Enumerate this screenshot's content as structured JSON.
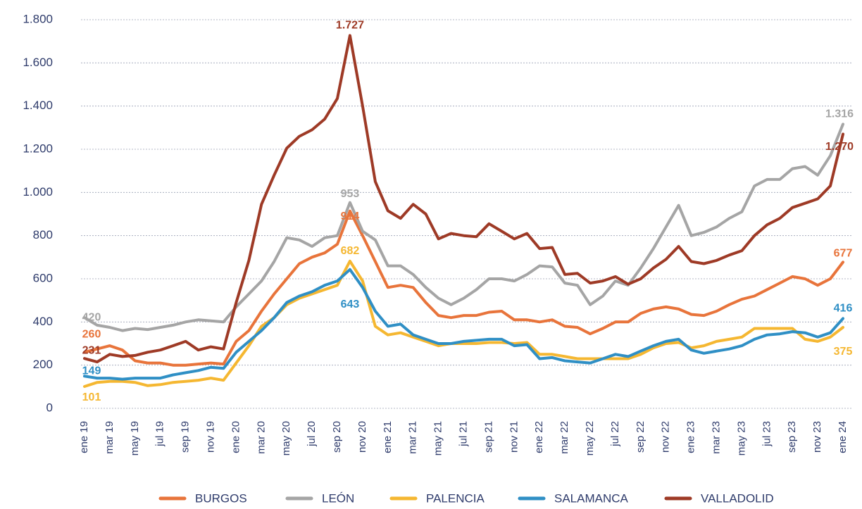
{
  "chart_data": {
    "type": "line",
    "categories": [
      "ene 19",
      null,
      "mar 19",
      null,
      "may 19",
      null,
      "jul 19",
      null,
      "sep 19",
      null,
      "nov 19",
      null,
      "ene 20",
      null,
      "mar 20",
      null,
      "may 20",
      null,
      "jul 20",
      null,
      "sep 20",
      null,
      "nov 20",
      null,
      "ene 21",
      null,
      "mar 21",
      null,
      "may 21",
      null,
      "jul 21",
      null,
      "sep 21",
      null,
      "nov 21",
      null,
      "ene 22",
      null,
      "mar 22",
      null,
      "may 22",
      null,
      "jul 22",
      null,
      "sep 22",
      null,
      "nov 22",
      null,
      "ene 23",
      null,
      "mar 23",
      null,
      "may 23",
      null,
      "jul 23",
      null,
      "sep 23",
      null,
      "nov 23",
      null,
      "ene 24"
    ],
    "ylim": [
      0,
      1800
    ],
    "yticks": [
      0,
      200,
      400,
      600,
      800,
      {
        "value": 1000,
        "label": "1.000"
      },
      {
        "value": 1200,
        "label": "1.200"
      },
      {
        "value": 1400,
        "label": "1.400"
      },
      {
        "value": 1600,
        "label": "1.600"
      },
      {
        "value": 1800,
        "label": "1.800"
      }
    ],
    "grid": true,
    "legend": "bottom",
    "series": [
      {
        "name": "BURGOS",
        "color": "#e8743b",
        "values": [
          260,
          275,
          290,
          270,
          220,
          210,
          210,
          200,
          200,
          205,
          210,
          205,
          310,
          360,
          450,
          530,
          600,
          670,
          700,
          720,
          760,
          914,
          800,
          680,
          560,
          570,
          560,
          490,
          430,
          420,
          430,
          430,
          445,
          450,
          410,
          410,
          400,
          410,
          380,
          375,
          345,
          370,
          400,
          400,
          440,
          460,
          470,
          460,
          435,
          430,
          450,
          480,
          505,
          520,
          550,
          580,
          610,
          600,
          570,
          600,
          677
        ],
        "value_labels": [
          "260",
          null,
          null,
          null,
          null,
          null,
          null,
          null,
          null,
          null,
          null,
          null,
          null,
          null,
          null,
          null,
          null,
          null,
          null,
          null,
          null,
          "914",
          null,
          null,
          null,
          null,
          null,
          null,
          null,
          null,
          null,
          null,
          null,
          null,
          null,
          null,
          null,
          null,
          null,
          null,
          null,
          null,
          null,
          null,
          null,
          null,
          null,
          null,
          null,
          null,
          null,
          null,
          null,
          null,
          null,
          null,
          null,
          null,
          null,
          null,
          "677"
        ]
      },
      {
        "name": "LEÓN",
        "color": "#a5a5a5",
        "values": [
          420,
          385,
          375,
          360,
          370,
          365,
          375,
          385,
          400,
          410,
          405,
          400,
          470,
          530,
          590,
          680,
          790,
          780,
          750,
          790,
          800,
          953,
          820,
          780,
          660,
          660,
          620,
          560,
          510,
          480,
          510,
          550,
          600,
          600,
          590,
          620,
          660,
          655,
          580,
          570,
          480,
          520,
          590,
          570,
          650,
          740,
          840,
          940,
          800,
          815,
          840,
          880,
          910,
          1030,
          1060,
          1060,
          1110,
          1120,
          1080,
          1170,
          1316
        ],
        "value_labels": [
          "420",
          null,
          null,
          null,
          null,
          null,
          null,
          null,
          null,
          null,
          null,
          null,
          null,
          null,
          null,
          null,
          null,
          null,
          null,
          null,
          null,
          "953",
          null,
          null,
          null,
          null,
          null,
          null,
          null,
          null,
          null,
          null,
          null,
          null,
          null,
          null,
          null,
          null,
          null,
          null,
          null,
          null,
          null,
          null,
          null,
          null,
          null,
          null,
          null,
          null,
          null,
          null,
          null,
          null,
          null,
          null,
          null,
          null,
          null,
          null,
          "1.316"
        ]
      },
      {
        "name": "PALENCIA",
        "color": "#f5b731",
        "values": [
          101,
          120,
          125,
          125,
          120,
          105,
          110,
          120,
          125,
          130,
          140,
          130,
          210,
          290,
          380,
          420,
          480,
          510,
          530,
          550,
          570,
          682,
          590,
          380,
          340,
          350,
          330,
          310,
          290,
          300,
          300,
          300,
          305,
          305,
          300,
          305,
          250,
          250,
          240,
          230,
          230,
          230,
          230,
          230,
          250,
          280,
          300,
          305,
          280,
          290,
          310,
          320,
          330,
          370,
          370,
          370,
          370,
          320,
          310,
          330,
          375
        ],
        "value_labels": [
          "101",
          null,
          null,
          null,
          null,
          null,
          null,
          null,
          null,
          null,
          null,
          null,
          null,
          null,
          null,
          null,
          null,
          null,
          null,
          null,
          null,
          "682",
          null,
          null,
          null,
          null,
          null,
          null,
          null,
          null,
          null,
          null,
          null,
          null,
          null,
          null,
          null,
          null,
          null,
          null,
          null,
          null,
          null,
          null,
          null,
          null,
          null,
          null,
          null,
          null,
          null,
          null,
          null,
          null,
          null,
          null,
          null,
          null,
          null,
          null,
          "375"
        ]
      },
      {
        "name": "SALAMANCA",
        "color": "#2f8fc5",
        "values": [
          149,
          140,
          140,
          135,
          140,
          140,
          140,
          155,
          165,
          175,
          190,
          185,
          260,
          310,
          360,
          420,
          490,
          520,
          540,
          570,
          590,
          643,
          560,
          450,
          380,
          390,
          340,
          320,
          300,
          300,
          310,
          315,
          320,
          320,
          290,
          295,
          230,
          235,
          220,
          215,
          210,
          230,
          250,
          240,
          265,
          290,
          310,
          320,
          270,
          255,
          265,
          275,
          290,
          320,
          340,
          345,
          355,
          350,
          330,
          350,
          416
        ],
        "value_labels": [
          "149",
          null,
          null,
          null,
          null,
          null,
          null,
          null,
          null,
          null,
          null,
          null,
          null,
          null,
          null,
          null,
          null,
          null,
          null,
          null,
          null,
          "643",
          null,
          null,
          null,
          null,
          null,
          null,
          null,
          null,
          null,
          null,
          null,
          null,
          null,
          null,
          null,
          null,
          null,
          null,
          null,
          null,
          null,
          null,
          null,
          null,
          null,
          null,
          null,
          null,
          null,
          null,
          null,
          null,
          null,
          null,
          null,
          null,
          null,
          null,
          "416"
        ]
      },
      {
        "name": "VALLADOLID",
        "color": "#9e3a26",
        "values": [
          231,
          215,
          250,
          240,
          245,
          260,
          270,
          290,
          310,
          270,
          285,
          275,
          490,
          685,
          945,
          1080,
          1205,
          1260,
          1290,
          1340,
          1435,
          1727,
          1400,
          1050,
          915,
          880,
          945,
          900,
          785,
          810,
          800,
          795,
          855,
          820,
          785,
          810,
          740,
          745,
          620,
          625,
          580,
          590,
          610,
          575,
          600,
          650,
          690,
          750,
          680,
          670,
          685,
          710,
          730,
          800,
          850,
          880,
          930,
          950,
          970,
          1030,
          1270
        ],
        "value_labels": [
          "231",
          null,
          null,
          null,
          null,
          null,
          null,
          null,
          null,
          null,
          null,
          null,
          null,
          null,
          null,
          null,
          null,
          null,
          null,
          null,
          null,
          "1.727",
          null,
          null,
          null,
          null,
          null,
          null,
          null,
          null,
          null,
          null,
          null,
          null,
          null,
          null,
          null,
          null,
          null,
          null,
          null,
          null,
          null,
          null,
          null,
          null,
          null,
          null,
          null,
          null,
          null,
          null,
          null,
          null,
          null,
          null,
          null,
          null,
          null,
          null,
          "1.270"
        ]
      }
    ]
  }
}
